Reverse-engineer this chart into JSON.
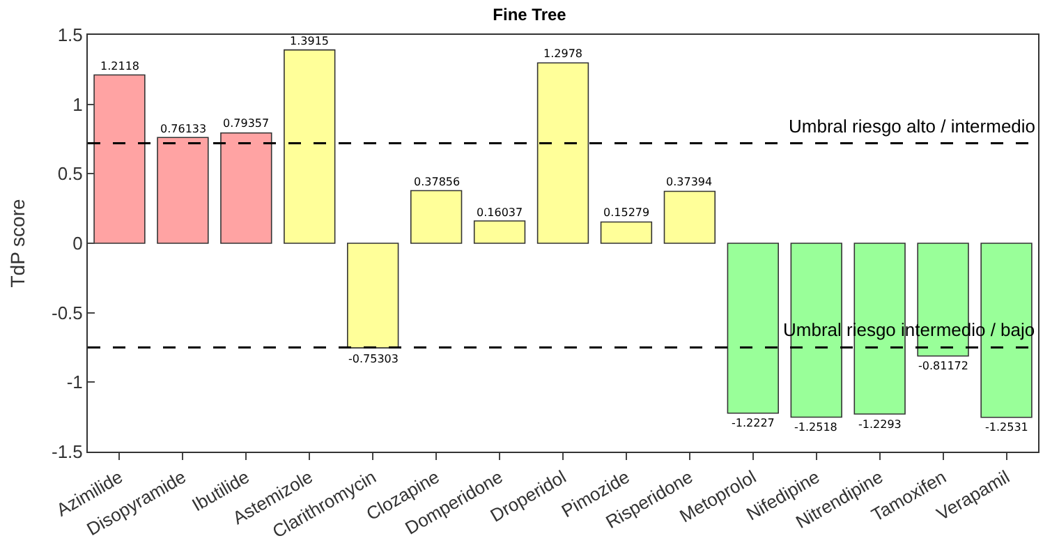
{
  "chart_data": {
    "type": "bar",
    "title": "Fine Tree",
    "ylabel": "TdP score",
    "categories": [
      "Azimilide",
      "Disopyramide",
      "Ibutilide",
      "Astemizole",
      "Clarithromycin",
      "Clozapine",
      "Domperidone",
      "Droperidol",
      "Pimozide",
      "Risperidone",
      "Metoprolol",
      "Nifedipine",
      "Nitrendipine",
      "Tamoxifen",
      "Verapamil"
    ],
    "values": [
      1.2118,
      0.76133,
      0.79357,
      1.3915,
      -0.75303,
      0.37856,
      0.16037,
      1.2978,
      0.15279,
      0.37394,
      -1.2227,
      -1.2518,
      -1.2293,
      -0.81172,
      -1.2531
    ],
    "colors": [
      "#ffa3a3",
      "#ffa3a3",
      "#ffa3a3",
      "#ffff99",
      "#ffff99",
      "#ffff99",
      "#ffff99",
      "#ffff99",
      "#ffff99",
      "#ffff99",
      "#99ff99",
      "#99ff99",
      "#99ff99",
      "#99ff99",
      "#99ff99"
    ],
    "ylim": [
      -1.5,
      1.5
    ],
    "yticks": [
      -1.5,
      -1,
      -0.5,
      0,
      0.5,
      1,
      1.5
    ],
    "data_labels": true,
    "ref_lines": [
      {
        "axis": "y",
        "value": 0.72,
        "label": "Umbral riesgo alto / intermedio",
        "color": "#000000",
        "line_style": "dashed"
      },
      {
        "axis": "y",
        "value": -0.75,
        "label": "Umbral riesgo intermedio / bajo",
        "color": "#000000",
        "line_style": "dashed"
      }
    ]
  }
}
